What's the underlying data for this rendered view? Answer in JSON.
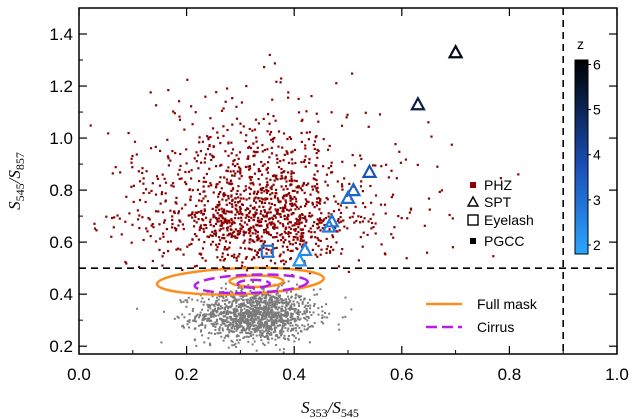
{
  "chart_data": {
    "type": "scatter",
    "xlim": [
      0.0,
      1.0
    ],
    "ylim": [
      0.17,
      1.5
    ],
    "x_ticks": [
      "0.0",
      "0.2",
      "0.4",
      "0.6",
      "0.8",
      "1.0"
    ],
    "x_tick_values": [
      0.0,
      0.2,
      0.4,
      0.6,
      0.8,
      1.0
    ],
    "y_ticks": [
      "0.2",
      "0.4",
      "0.6",
      "0.8",
      "1.0",
      "1.2",
      "1.4"
    ],
    "y_tick_values": [
      0.2,
      0.4,
      0.6,
      0.8,
      1.0,
      1.2,
      1.4
    ],
    "xlabel": {
      "S1": "S",
      "sub1": "353",
      "slash": "/",
      "S2": "S",
      "sub2": "545"
    },
    "ylabel": {
      "S1": "S",
      "sub1": "545",
      "slash": "/",
      "S2": "S",
      "sub2": "857"
    },
    "thresholds": {
      "y": 0.5,
      "x": 0.9
    },
    "series": [
      {
        "name": "PHZ",
        "marker": "filled-square",
        "color": "#8b0000",
        "x_center": 0.33,
        "y_center": 0.72,
        "x_spread": 0.1,
        "y_spread": 0.15,
        "count": 1400
      },
      {
        "name": "PGCC",
        "marker": "filled-square",
        "color": "#808080",
        "x_center": 0.33,
        "y_center": 0.32,
        "x_spread": 0.055,
        "y_spread": 0.05,
        "count": 1300
      },
      {
        "name": "SPT",
        "marker": "triangle",
        "points": [
          {
            "x": 0.7,
            "y": 1.33,
            "z": 5.8
          },
          {
            "x": 0.63,
            "y": 1.13,
            "z": 5.2
          },
          {
            "x": 0.54,
            "y": 0.87,
            "z": 3.7
          },
          {
            "x": 0.51,
            "y": 0.8,
            "z": 3.3
          },
          {
            "x": 0.5,
            "y": 0.77,
            "z": 3.1
          },
          {
            "x": 0.47,
            "y": 0.68,
            "z": 2.9
          },
          {
            "x": 0.465,
            "y": 0.66,
            "z": 2.7
          },
          {
            "x": 0.42,
            "y": 0.57,
            "z": 2.5
          },
          {
            "x": 0.41,
            "y": 0.53,
            "z": 2.3
          }
        ]
      },
      {
        "name": "Eyelash",
        "marker": "square",
        "points": [
          {
            "x": 0.35,
            "y": 0.565,
            "z": 2.9
          }
        ]
      },
      {
        "name": "Full mask",
        "line": "solid",
        "color": "#ff8c1a"
      },
      {
        "name": "Cirrus",
        "line": "dashed",
        "color": "#b41ee8"
      }
    ],
    "legend": {
      "placement": "right",
      "entries": [
        "PHZ",
        "SPT",
        "Eyelash",
        "PGCC",
        "Full mask",
        "Cirrus"
      ]
    },
    "colorbar": {
      "label": "z",
      "ticks": [
        "2",
        "3",
        "4",
        "5",
        "6"
      ],
      "tick_values": [
        2,
        3,
        4,
        5,
        6
      ],
      "range": [
        1.8,
        6.1
      ],
      "colormap": "blue-to-black"
    },
    "contours": {
      "full_mask": [
        {
          "center": [
            0.3,
            0.45
          ],
          "rx": 0.155,
          "ry": 0.05,
          "tilt": 2
        },
        {
          "center": [
            0.33,
            0.45
          ],
          "rx": 0.05,
          "ry": 0.022,
          "tilt": 0
        }
      ],
      "cirrus": [
        {
          "center": [
            0.32,
            0.44
          ],
          "rx": 0.105,
          "ry": 0.035,
          "tilt": 2
        },
        {
          "center": [
            0.325,
            0.44
          ],
          "rx": 0.03,
          "ry": 0.015,
          "tilt": 0
        }
      ]
    }
  }
}
